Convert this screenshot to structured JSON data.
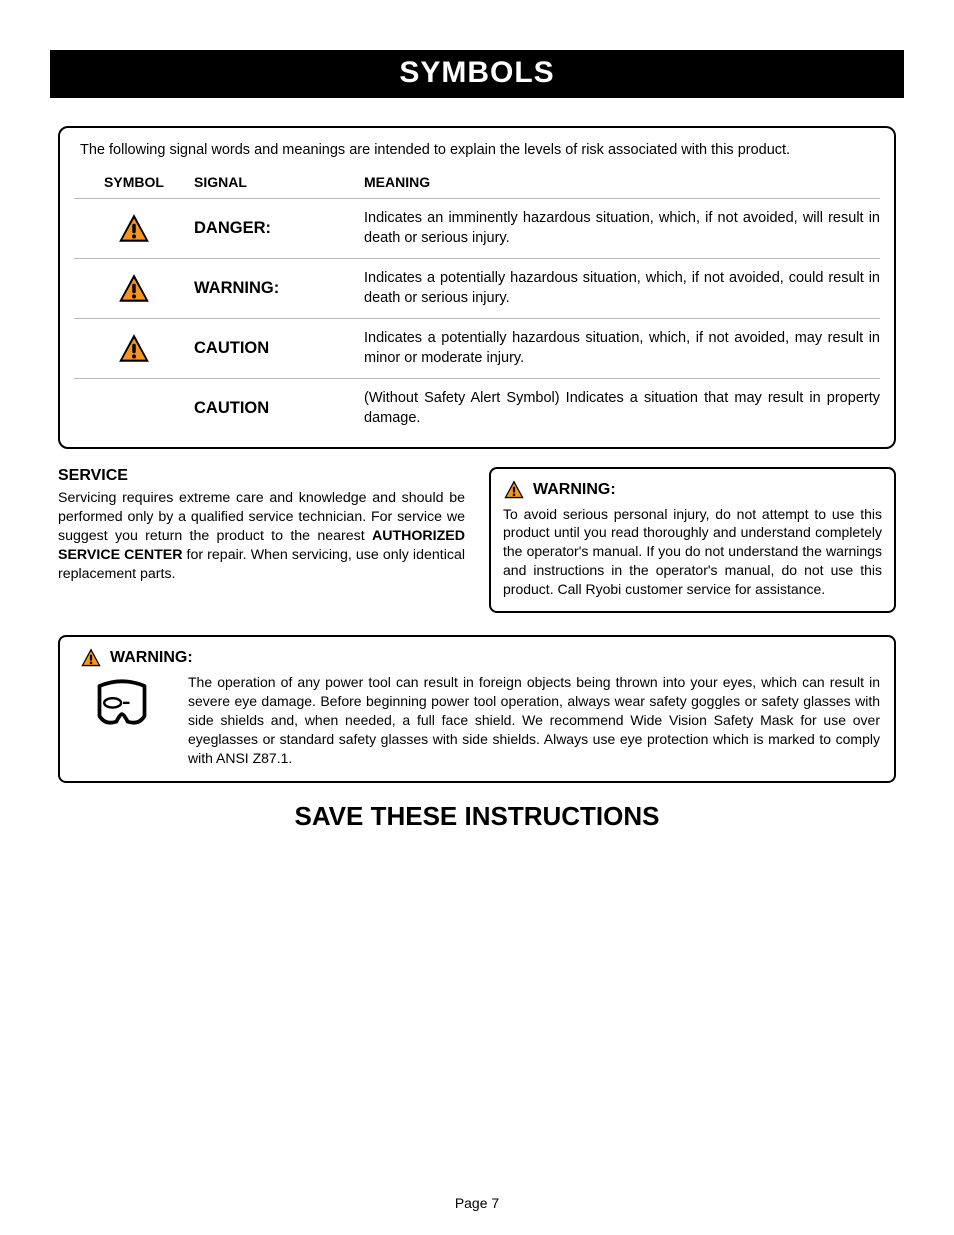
{
  "banner": "SYMBOLS",
  "intro": "The following signal words and meanings are intended to explain the levels of risk associated with this product.",
  "headers": {
    "symbol": "SYMBOL",
    "signal": "SIGNAL",
    "meaning": "MEANING"
  },
  "rows": [
    {
      "hasIcon": true,
      "signal": "DANGER:",
      "meaning": "Indicates an imminently hazardous situation, which, if not avoided, will result in death or serious injury."
    },
    {
      "hasIcon": true,
      "signal": "WARNING:",
      "meaning": "Indicates a potentially hazardous situation, which, if not avoided, could result in death or serious injury."
    },
    {
      "hasIcon": true,
      "signal": "CAUTION",
      "meaning": "Indicates a potentially hazardous situation, which, if not avoided, may result in minor or moderate injury."
    },
    {
      "hasIcon": false,
      "signal": "CAUTION",
      "meaning": "(Without Safety Alert Symbol) Indicates a situation that may result in property damage."
    }
  ],
  "service": {
    "heading": "SERVICE",
    "pre": "Servicing requires extreme care and knowledge and should be performed only by a qualified service technician. For service we suggest you return the product to the nearest ",
    "bold": "AUTHORIZED SERVICE CENTER",
    "post": " for repair. When servicing, use only identical replacement parts."
  },
  "warn1": {
    "heading": "WARNING:",
    "body": "To avoid serious personal injury, do not attempt to use this product until you read thoroughly and understand completely the operator's manual. If you do not understand the warnings and instructions in the operator's manual, do not use this product. Call Ryobi customer service for assistance."
  },
  "warn2": {
    "heading": "WARNING:",
    "body": "The operation of any power tool can result in foreign objects being thrown into your eyes, which can result in severe eye damage. Before beginning power tool operation, always wear safety goggles or safety glasses with side shields and, when needed, a full face shield. We recommend Wide Vision Safety Mask for use over eyeglasses or standard safety glasses with side shields. Always use eye protection which is marked to comply with ANSI Z87.1."
  },
  "save": "SAVE THESE INSTRUCTIONS",
  "footer": "Page 7",
  "colors": {
    "alert_fill": "#f7941e",
    "black": "#000000",
    "row_border": "#b8b8b8"
  },
  "icon_size": {
    "table": 38,
    "inline": 22,
    "goggle": 60
  }
}
